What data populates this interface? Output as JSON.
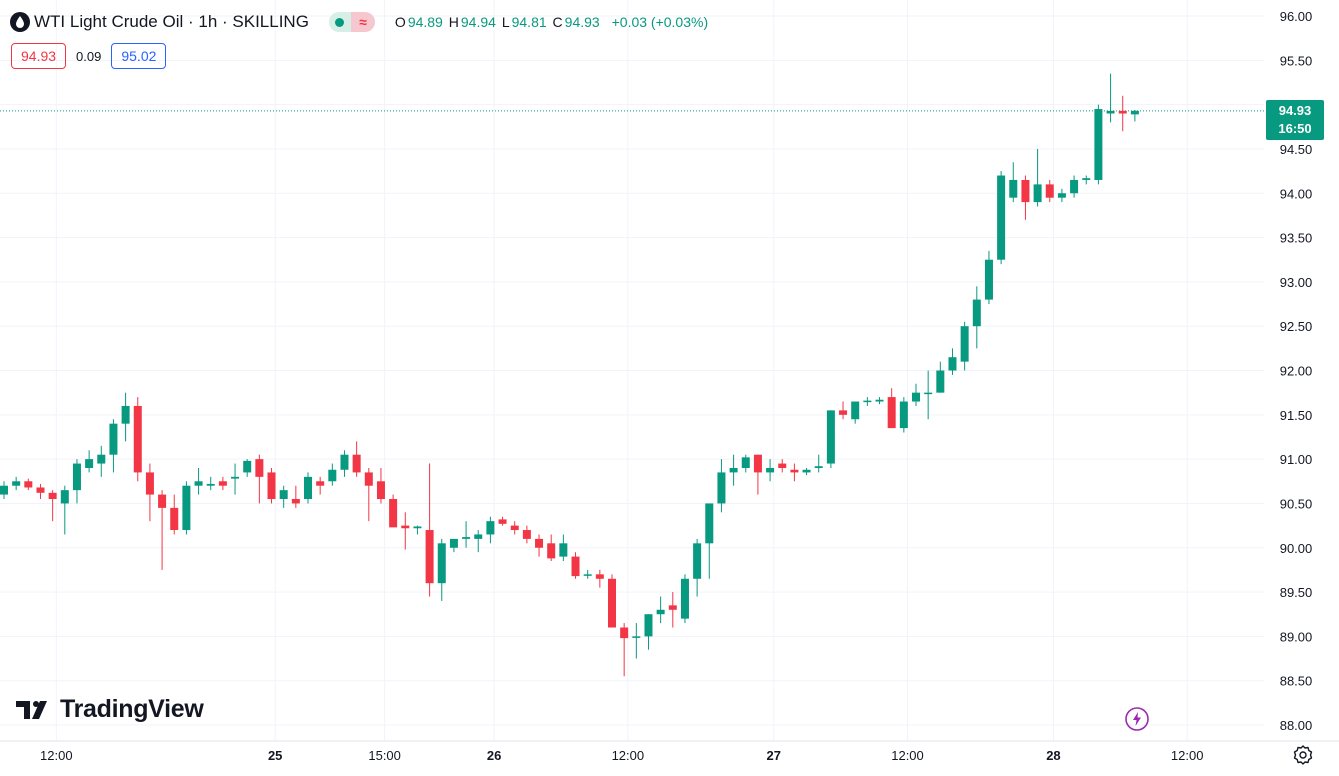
{
  "header": {
    "title": "WTI Light Crude Oil · 1h · SKILLING",
    "open_label": "O",
    "open": "94.89",
    "high_label": "H",
    "high": "94.94",
    "low_label": "L",
    "low": "94.81",
    "close_label": "C",
    "close": "94.93",
    "change": "+0.03 (+0.03%)"
  },
  "quote": {
    "bid": "94.93",
    "spread": "0.09",
    "ask": "95.02"
  },
  "last_price": {
    "value": "94.93",
    "countdown": "16:50"
  },
  "branding": {
    "logo_text": "TradingView"
  },
  "icons": [
    "symbol-icon",
    "status-dot-icon",
    "delayed-data-icon",
    "tradingview-logo-icon",
    "lightning-icon",
    "settings-gear-icon"
  ],
  "colors": {
    "up": "#089981",
    "down": "#f23645",
    "ask": "#2962ff",
    "grid": "#f0f3fa"
  },
  "chart_data": {
    "type": "candlestick",
    "y_axis_side": "right",
    "ylim": [
      88.0,
      96.0
    ],
    "y_ticks": [
      "96.00",
      "95.50",
      "95.00",
      "94.50",
      "94.00",
      "93.50",
      "93.00",
      "92.50",
      "92.00",
      "91.50",
      "91.00",
      "90.50",
      "90.00",
      "89.50",
      "89.00",
      "88.50",
      "88.00"
    ],
    "x_ticks": [
      {
        "index": 2,
        "label": "12:00",
        "bold": false
      },
      {
        "index": 20,
        "label": "25",
        "bold": true
      },
      {
        "index": 29,
        "label": "15:00",
        "bold": false
      },
      {
        "index": 38,
        "label": "26",
        "bold": true
      },
      {
        "index": 49,
        "label": "12:00",
        "bold": false
      },
      {
        "index": 61,
        "label": "27",
        "bold": true
      },
      {
        "index": 72,
        "label": "12:00",
        "bold": false
      },
      {
        "index": 84,
        "label": "28",
        "bold": true
      },
      {
        "index": 95,
        "label": "12:00",
        "bold": false
      }
    ],
    "last_price_line": 94.93,
    "ohlc": [
      [
        90.6,
        90.75,
        90.55,
        90.7
      ],
      [
        90.7,
        90.8,
        90.65,
        90.75
      ],
      [
        90.75,
        90.78,
        90.65,
        90.68
      ],
      [
        90.68,
        90.72,
        90.55,
        90.62
      ],
      [
        90.62,
        90.65,
        90.3,
        90.55
      ],
      [
        90.5,
        90.7,
        90.15,
        90.65
      ],
      [
        90.65,
        91.0,
        90.5,
        90.95
      ],
      [
        90.9,
        91.1,
        90.85,
        91.0
      ],
      [
        90.95,
        91.15,
        90.8,
        91.05
      ],
      [
        91.05,
        91.45,
        90.85,
        91.4
      ],
      [
        91.4,
        91.75,
        91.2,
        91.6
      ],
      [
        91.6,
        91.7,
        90.75,
        90.85
      ],
      [
        90.85,
        90.95,
        90.3,
        90.6
      ],
      [
        90.6,
        90.65,
        89.75,
        90.45
      ],
      [
        90.45,
        90.6,
        90.15,
        90.2
      ],
      [
        90.2,
        90.75,
        90.15,
        90.7
      ],
      [
        90.7,
        90.9,
        90.6,
        90.75
      ],
      [
        90.7,
        90.8,
        90.65,
        90.72
      ],
      [
        90.75,
        90.8,
        90.65,
        90.7
      ],
      [
        90.78,
        90.95,
        90.6,
        90.8
      ],
      [
        90.85,
        91.0,
        90.8,
        90.98
      ],
      [
        91.0,
        91.05,
        90.5,
        90.8
      ],
      [
        90.85,
        90.9,
        90.5,
        90.55
      ],
      [
        90.55,
        90.7,
        90.45,
        90.65
      ],
      [
        90.55,
        90.7,
        90.45,
        90.5
      ],
      [
        90.55,
        90.85,
        90.5,
        90.8
      ],
      [
        90.75,
        90.8,
        90.6,
        90.7
      ],
      [
        90.75,
        90.95,
        90.7,
        90.88
      ],
      [
        90.88,
        91.1,
        90.8,
        91.05
      ],
      [
        91.05,
        91.2,
        90.8,
        90.85
      ],
      [
        90.85,
        90.9,
        90.3,
        90.7
      ],
      [
        90.75,
        90.9,
        90.5,
        90.55
      ],
      [
        90.55,
        90.6,
        90.25,
        90.23
      ],
      [
        90.25,
        90.4,
        89.98,
        90.22
      ],
      [
        90.22,
        90.25,
        90.15,
        90.24
      ],
      [
        90.2,
        90.95,
        89.45,
        89.6
      ],
      [
        89.6,
        90.1,
        89.4,
        90.05
      ],
      [
        90.0,
        90.1,
        89.95,
        90.1
      ],
      [
        90.1,
        90.3,
        90.0,
        90.12
      ],
      [
        90.1,
        90.2,
        89.95,
        90.15
      ],
      [
        90.15,
        90.35,
        90.05,
        90.3
      ],
      [
        90.32,
        90.35,
        90.25,
        90.27
      ],
      [
        90.25,
        90.3,
        90.15,
        90.2
      ],
      [
        90.2,
        90.25,
        90.05,
        90.1
      ],
      [
        90.1,
        90.15,
        89.9,
        90.0
      ],
      [
        90.05,
        90.15,
        89.85,
        89.88
      ],
      [
        89.9,
        90.15,
        89.85,
        90.05
      ],
      [
        89.9,
        89.95,
        89.65,
        89.68
      ],
      [
        89.7,
        89.75,
        89.65,
        89.7
      ],
      [
        89.7,
        89.75,
        89.55,
        89.65
      ],
      [
        89.65,
        89.7,
        89.1,
        89.1
      ],
      [
        89.1,
        89.15,
        88.55,
        88.98
      ],
      [
        89.0,
        89.15,
        88.75,
        89.0
      ],
      [
        89.0,
        89.25,
        88.85,
        89.25
      ],
      [
        89.25,
        89.45,
        89.15,
        89.3
      ],
      [
        89.35,
        89.5,
        89.1,
        89.3
      ],
      [
        89.2,
        89.7,
        89.15,
        89.65
      ],
      [
        89.65,
        90.1,
        89.45,
        90.05
      ],
      [
        90.05,
        90.5,
        89.65,
        90.5
      ],
      [
        90.5,
        91.0,
        90.4,
        90.85
      ],
      [
        90.85,
        91.05,
        90.7,
        90.9
      ],
      [
        90.9,
        91.05,
        90.85,
        91.02
      ],
      [
        91.05,
        91.05,
        90.6,
        90.85
      ],
      [
        90.85,
        91.0,
        90.75,
        90.9
      ],
      [
        90.95,
        91.0,
        90.85,
        90.9
      ],
      [
        90.88,
        90.95,
        90.75,
        90.85
      ],
      [
        90.85,
        90.9,
        90.82,
        90.88
      ],
      [
        90.9,
        91.05,
        90.85,
        90.92
      ],
      [
        90.95,
        91.55,
        90.9,
        91.55
      ],
      [
        91.55,
        91.65,
        91.45,
        91.5
      ],
      [
        91.45,
        91.65,
        91.4,
        91.65
      ],
      [
        91.65,
        91.7,
        91.6,
        91.66
      ],
      [
        91.65,
        91.7,
        91.62,
        91.67
      ],
      [
        91.7,
        91.8,
        91.35,
        91.35
      ],
      [
        91.35,
        91.7,
        91.3,
        91.65
      ],
      [
        91.65,
        91.85,
        91.6,
        91.75
      ],
      [
        91.75,
        92.0,
        91.45,
        91.75
      ],
      [
        91.75,
        92.1,
        91.75,
        92.0
      ],
      [
        92.0,
        92.25,
        91.95,
        92.15
      ],
      [
        92.1,
        92.55,
        92.0,
        92.5
      ],
      [
        92.5,
        92.95,
        92.25,
        92.8
      ],
      [
        92.8,
        93.35,
        92.75,
        93.25
      ],
      [
        93.25,
        94.25,
        93.2,
        94.2
      ],
      [
        93.95,
        94.35,
        93.9,
        94.15
      ],
      [
        94.15,
        94.2,
        93.7,
        93.9
      ],
      [
        93.9,
        94.5,
        93.85,
        94.1
      ],
      [
        94.1,
        94.15,
        93.9,
        93.95
      ],
      [
        93.95,
        94.05,
        93.9,
        94.0
      ],
      [
        94.0,
        94.2,
        93.95,
        94.15
      ],
      [
        94.15,
        94.2,
        94.1,
        94.17
      ],
      [
        94.15,
        95.0,
        94.1,
        94.95
      ],
      [
        94.9,
        95.35,
        94.8,
        94.93
      ],
      [
        94.93,
        95.1,
        94.7,
        94.9
      ],
      [
        94.89,
        94.94,
        94.81,
        94.93
      ]
    ]
  }
}
